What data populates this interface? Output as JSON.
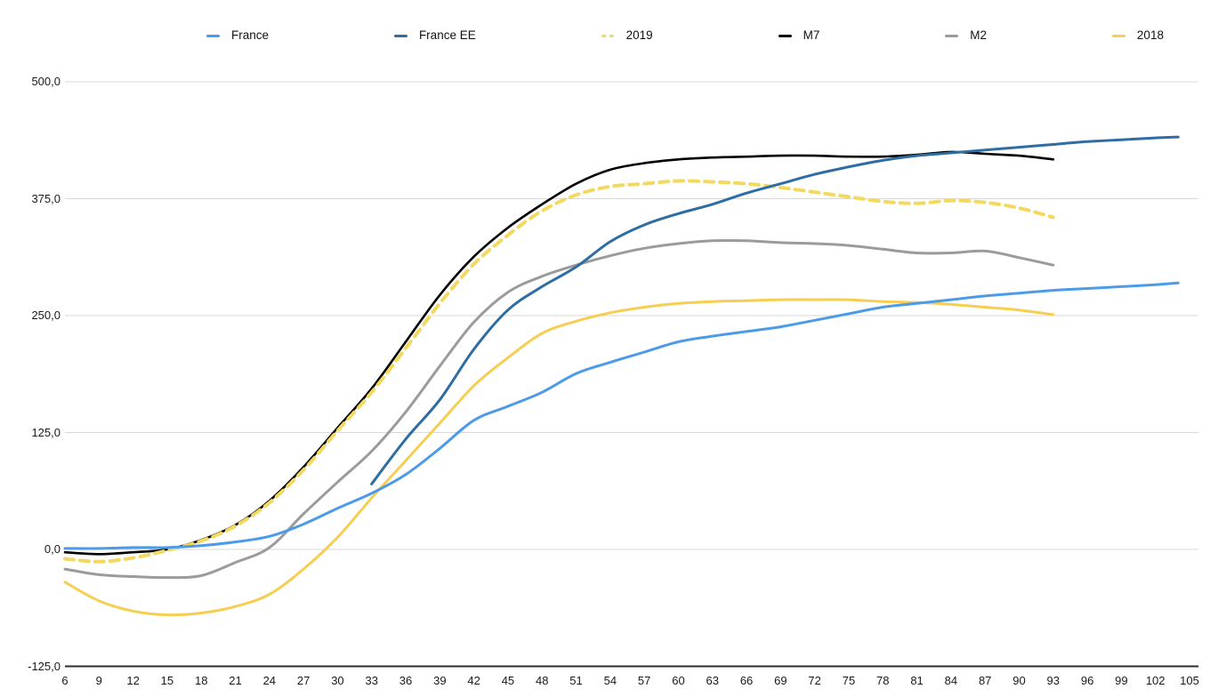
{
  "chart_data": {
    "type": "line",
    "title": "",
    "xlabel": "",
    "ylabel": "",
    "xlim": [
      6,
      105
    ],
    "ylim": [
      -125,
      500
    ],
    "grid": "horizontal",
    "legend_position": "top",
    "x_ticks": [
      6,
      9,
      12,
      15,
      18,
      21,
      24,
      27,
      30,
      33,
      36,
      39,
      42,
      45,
      48,
      51,
      54,
      57,
      60,
      63,
      66,
      69,
      72,
      75,
      78,
      81,
      84,
      87,
      90,
      93,
      96,
      99,
      102,
      105
    ],
    "y_ticks": [
      500,
      375,
      250,
      125,
      0,
      -125
    ],
    "y_tick_labels": [
      "500,0",
      "375,0",
      "250,0",
      "125,0",
      "0,0",
      "-125,0"
    ],
    "series": [
      {
        "name": "France",
        "color": "#4C9BE8",
        "style": "solid",
        "points": [
          [
            6,
            1
          ],
          [
            9,
            1
          ],
          [
            12,
            2
          ],
          [
            15,
            2
          ],
          [
            18,
            4
          ],
          [
            21,
            8
          ],
          [
            24,
            14
          ],
          [
            27,
            27
          ],
          [
            30,
            44
          ],
          [
            33,
            60
          ],
          [
            36,
            80
          ],
          [
            39,
            108
          ],
          [
            42,
            138
          ],
          [
            45,
            153
          ],
          [
            48,
            168
          ],
          [
            51,
            188
          ],
          [
            54,
            200
          ],
          [
            57,
            211
          ],
          [
            60,
            222
          ],
          [
            63,
            228
          ],
          [
            66,
            233
          ],
          [
            69,
            238
          ],
          [
            72,
            245
          ],
          [
            75,
            252
          ],
          [
            78,
            259
          ],
          [
            81,
            263
          ],
          [
            84,
            267
          ],
          [
            87,
            271
          ],
          [
            90,
            274
          ],
          [
            93,
            277
          ],
          [
            96,
            279
          ],
          [
            99,
            281
          ],
          [
            102,
            283
          ],
          [
            104,
            285
          ]
        ]
      },
      {
        "name": "France EE",
        "color": "#2E6DA4",
        "style": "solid",
        "points": [
          [
            33,
            70
          ],
          [
            36,
            118
          ],
          [
            39,
            160
          ],
          [
            42,
            214
          ],
          [
            45,
            256
          ],
          [
            48,
            281
          ],
          [
            51,
            302
          ],
          [
            54,
            329
          ],
          [
            57,
            347
          ],
          [
            60,
            359
          ],
          [
            63,
            369
          ],
          [
            66,
            381
          ],
          [
            69,
            391
          ],
          [
            72,
            401
          ],
          [
            75,
            409
          ],
          [
            78,
            416
          ],
          [
            81,
            421
          ],
          [
            84,
            424
          ],
          [
            87,
            427
          ],
          [
            90,
            430
          ],
          [
            93,
            433
          ],
          [
            96,
            436
          ],
          [
            99,
            438
          ],
          [
            102,
            440
          ],
          [
            104,
            441
          ]
        ]
      },
      {
        "name": "2019",
        "color": "#F3D95F",
        "style": "dashed",
        "points": [
          [
            6,
            -10
          ],
          [
            9,
            -13
          ],
          [
            12,
            -9
          ],
          [
            15,
            -1
          ],
          [
            18,
            9
          ],
          [
            21,
            25
          ],
          [
            24,
            50
          ],
          [
            27,
            85
          ],
          [
            30,
            127
          ],
          [
            33,
            168
          ],
          [
            36,
            215
          ],
          [
            39,
            263
          ],
          [
            42,
            305
          ],
          [
            45,
            336
          ],
          [
            48,
            362
          ],
          [
            51,
            379
          ],
          [
            54,
            388
          ],
          [
            57,
            391
          ],
          [
            60,
            394
          ],
          [
            63,
            393
          ],
          [
            66,
            391
          ],
          [
            69,
            387
          ],
          [
            72,
            382
          ],
          [
            75,
            377
          ],
          [
            78,
            372
          ],
          [
            81,
            370
          ],
          [
            84,
            373
          ],
          [
            87,
            371
          ],
          [
            90,
            365
          ],
          [
            93,
            355
          ]
        ]
      },
      {
        "name": "M7",
        "color": "#000000",
        "style": "solid",
        "points": [
          [
            6,
            -3
          ],
          [
            9,
            -5
          ],
          [
            12,
            -3
          ],
          [
            15,
            0
          ],
          [
            18,
            10
          ],
          [
            21,
            26
          ],
          [
            24,
            52
          ],
          [
            27,
            88
          ],
          [
            30,
            130
          ],
          [
            33,
            172
          ],
          [
            36,
            222
          ],
          [
            39,
            272
          ],
          [
            42,
            313
          ],
          [
            45,
            344
          ],
          [
            48,
            369
          ],
          [
            51,
            391
          ],
          [
            54,
            406
          ],
          [
            57,
            413
          ],
          [
            60,
            417
          ],
          [
            63,
            419
          ],
          [
            66,
            420
          ],
          [
            69,
            421
          ],
          [
            72,
            421
          ],
          [
            75,
            420
          ],
          [
            78,
            420
          ],
          [
            81,
            422
          ],
          [
            84,
            425
          ],
          [
            87,
            423
          ],
          [
            90,
            421
          ],
          [
            93,
            417
          ]
        ]
      },
      {
        "name": "M2",
        "color": "#9B9B9B",
        "style": "solid",
        "points": [
          [
            6,
            -21
          ],
          [
            9,
            -27
          ],
          [
            12,
            -29
          ],
          [
            15,
            -30
          ],
          [
            18,
            -28
          ],
          [
            21,
            -14
          ],
          [
            24,
            2
          ],
          [
            27,
            38
          ],
          [
            30,
            72
          ],
          [
            33,
            105
          ],
          [
            36,
            147
          ],
          [
            39,
            196
          ],
          [
            42,
            243
          ],
          [
            45,
            275
          ],
          [
            48,
            292
          ],
          [
            51,
            304
          ],
          [
            54,
            314
          ],
          [
            57,
            322
          ],
          [
            60,
            327
          ],
          [
            63,
            330
          ],
          [
            66,
            330
          ],
          [
            69,
            328
          ],
          [
            72,
            327
          ],
          [
            75,
            325
          ],
          [
            78,
            321
          ],
          [
            81,
            317
          ],
          [
            84,
            317
          ],
          [
            87,
            319
          ],
          [
            90,
            312
          ],
          [
            93,
            304
          ]
        ]
      },
      {
        "name": "2018",
        "color": "#F5CE52",
        "style": "solid",
        "points": [
          [
            6,
            -35
          ],
          [
            9,
            -55
          ],
          [
            12,
            -66
          ],
          [
            15,
            -70
          ],
          [
            18,
            -68
          ],
          [
            21,
            -61
          ],
          [
            24,
            -48
          ],
          [
            27,
            -21
          ],
          [
            30,
            13
          ],
          [
            33,
            55
          ],
          [
            36,
            95
          ],
          [
            39,
            135
          ],
          [
            42,
            175
          ],
          [
            45,
            205
          ],
          [
            48,
            231
          ],
          [
            51,
            244
          ],
          [
            54,
            253
          ],
          [
            57,
            259
          ],
          [
            60,
            263
          ],
          [
            63,
            265
          ],
          [
            66,
            266
          ],
          [
            69,
            267
          ],
          [
            72,
            267
          ],
          [
            75,
            267
          ],
          [
            78,
            265
          ],
          [
            81,
            264
          ],
          [
            84,
            262
          ],
          [
            87,
            259
          ],
          [
            90,
            256
          ],
          [
            93,
            251
          ]
        ]
      }
    ],
    "colors": {
      "gridline": "#D8D8D8",
      "axis_line": "#2B2B2B",
      "tick_label": "#1A1A1A"
    }
  }
}
